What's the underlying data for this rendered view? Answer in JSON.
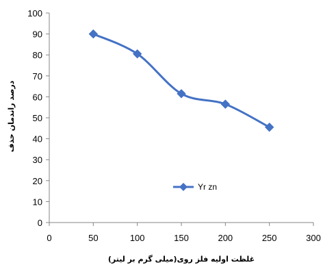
{
  "chart_data": {
    "type": "line",
    "x": [
      50,
      100,
      150,
      200,
      250
    ],
    "series": [
      {
        "name": "Yr zn",
        "values": [
          90,
          80.5,
          61.5,
          56.5,
          45.5
        ]
      }
    ],
    "xlabel": "غلظت اولیه فلز روی(میلی گرم بر لیتر)",
    "ylabel": "درصد راندمان حذف",
    "xlim": [
      0,
      300
    ],
    "ylim": [
      0,
      100
    ],
    "xticks": [
      0,
      50,
      100,
      150,
      200,
      250,
      300
    ],
    "yticks": [
      0,
      10,
      20,
      30,
      40,
      50,
      60,
      70,
      80,
      90,
      100
    ],
    "grid": false,
    "legend": "center-right",
    "colors": {
      "series": "#4472C4",
      "axis": "#868686"
    },
    "marker": "diamond",
    "smooth": true
  }
}
